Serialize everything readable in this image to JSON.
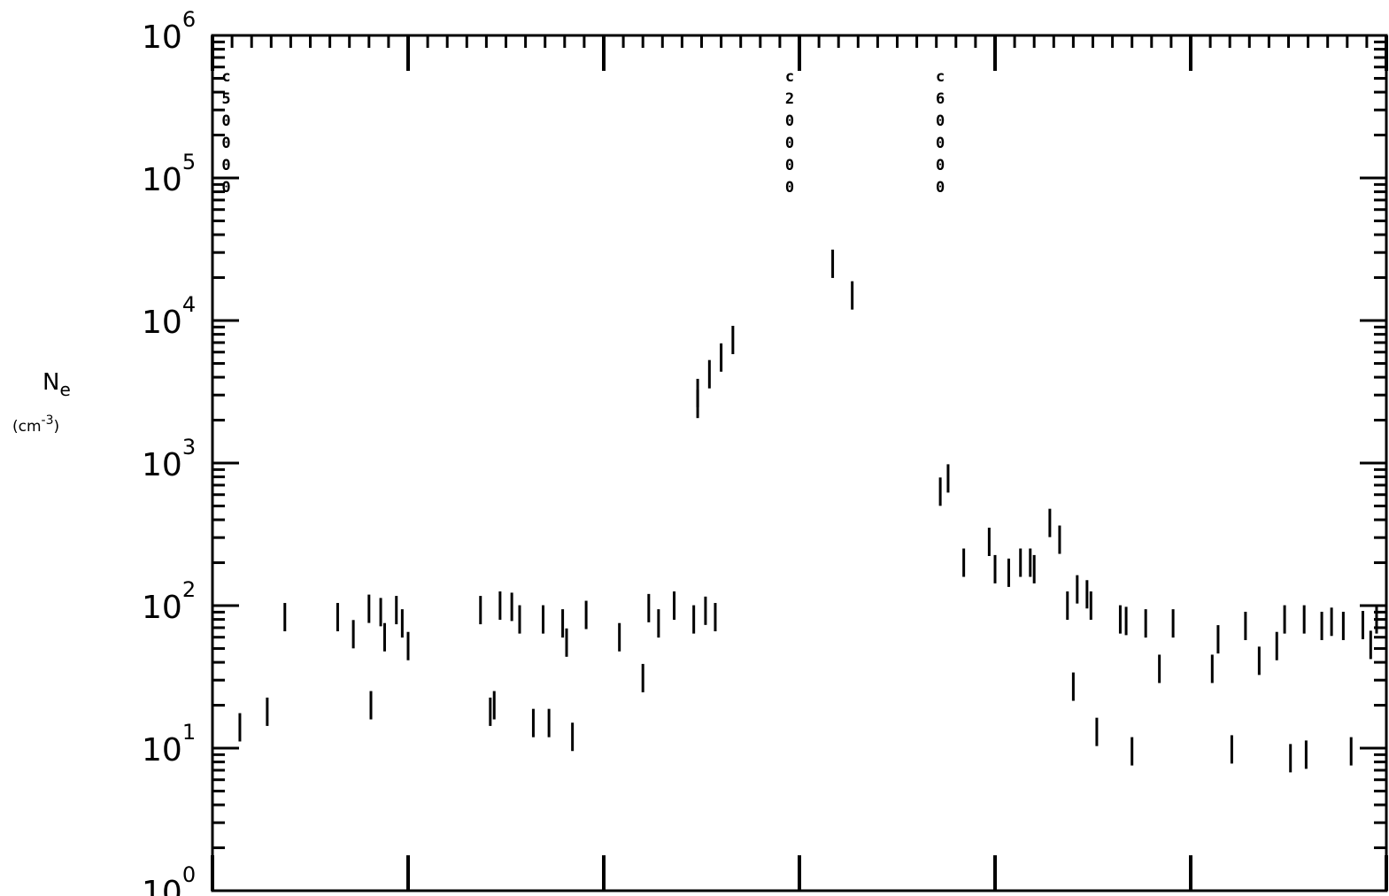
{
  "chart_data": {
    "type": "scatter",
    "marker": "vertical-bar",
    "title": "",
    "xlabel": "",
    "ylabel": "N",
    "ylabel_subscript": "e",
    "yunit": "(cm",
    "yunit_exponent": "-3",
    "yunit_close": ")",
    "yscale": "log",
    "ylim": [
      1,
      1000000
    ],
    "xlim": [
      0,
      6
    ],
    "x_tick_labels": [],
    "y_ticks": [
      {
        "base": "10",
        "exp": "0",
        "value": 1
      },
      {
        "base": "10",
        "exp": "1",
        "value": 10
      },
      {
        "base": "10",
        "exp": "2",
        "value": 100
      },
      {
        "base": "10",
        "exp": "3",
        "value": 1000
      },
      {
        "base": "10",
        "exp": "4",
        "value": 10000
      },
      {
        "base": "10",
        "exp": "5",
        "value": 100000
      },
      {
        "base": "10",
        "exp": "6",
        "value": 1000000
      }
    ],
    "annotations": [
      {
        "text": "c50000",
        "x": 0.07
      },
      {
        "text": "c20000",
        "x": 2.95
      },
      {
        "text": "c60000",
        "x": 3.72
      }
    ],
    "series": [
      {
        "x": [
          0.14,
          0.28,
          0.37,
          0.64,
          0.72,
          0.8,
          0.81,
          0.86,
          0.88,
          0.94,
          0.97,
          1.0,
          1.37,
          1.42,
          1.44,
          1.47,
          1.53,
          1.57,
          1.64,
          1.69,
          1.72,
          1.79,
          1.81,
          1.84,
          1.91,
          2.08,
          2.2,
          2.23,
          2.28,
          2.36,
          2.46,
          2.52,
          2.57,
          3.17,
          3.27,
          3.72,
          3.76,
          3.84,
          3.97,
          4.0,
          4.07,
          4.13,
          4.18,
          4.2,
          4.28,
          4.33,
          4.37,
          4.4,
          4.42,
          4.47,
          4.49,
          4.52,
          4.64,
          4.67,
          4.7,
          4.77,
          4.84,
          4.91,
          5.11,
          5.14,
          5.21,
          5.28,
          5.35,
          5.44,
          5.48,
          5.51,
          5.58,
          5.59,
          5.67,
          5.72,
          5.78,
          5.82,
          5.88,
          5.92,
          5.95
        ],
        "y": [
          14,
          18,
          83,
          83,
          63,
          95,
          20,
          90,
          60,
          93,
          75,
          52,
          93,
          18,
          20,
          100,
          98,
          80,
          15,
          80,
          15,
          75,
          55,
          12,
          86,
          60,
          31,
          96,
          75,
          100,
          80,
          92,
          83,
          25000,
          15000,
          630,
          780,
          200,
          280,
          180,
          170,
          200,
          200,
          180,
          380,
          290,
          100,
          27,
          130,
          120,
          100,
          13,
          80,
          78,
          9.5,
          75,
          36,
          75,
          36,
          58,
          9.8,
          72,
          41,
          52,
          80,
          8.5,
          80,
          9,
          72,
          77,
          72,
          9.5,
          73,
          53,
          80
        ]
      },
      {
        "x": [
          2.48,
          2.48,
          2.54,
          2.6,
          2.66
        ],
        "y": [
          3100,
          2600,
          4200,
          5500,
          7300
        ]
      }
    ],
    "grid": false,
    "legend": ""
  }
}
